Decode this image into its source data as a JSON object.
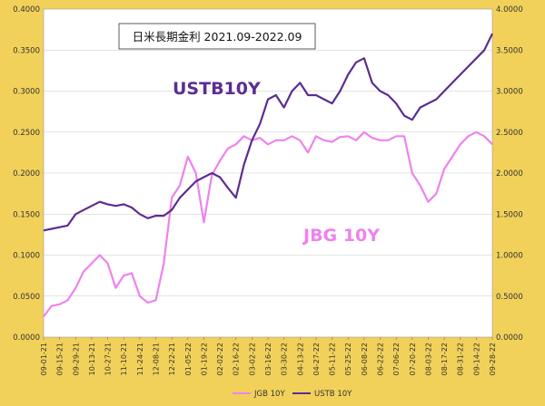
{
  "chart_data": {
    "type": "line",
    "title": "日米長期金利 2021.09-2022.09",
    "annotations": {
      "ustb": "USTB10Y",
      "jgb": "JBG 10Y"
    },
    "colors": {
      "frame": "#f2d15a",
      "plot_bg": "#ffffff",
      "grid": "#c7c7c7",
      "jgb": "#ee82ee",
      "ustb": "#5c2d91"
    },
    "grid": true,
    "legend_position": "bottom",
    "y_left": {
      "range": [
        0,
        0.4
      ],
      "ticks": [
        "0.4000",
        "0.3500",
        "0.3000",
        "0.2500",
        "0.2000",
        "0.1500",
        "0.1000",
        "0.0500",
        "0.0000"
      ]
    },
    "y_right": {
      "range": [
        0,
        4.0
      ],
      "ticks": [
        "4.0000",
        "3.5000",
        "3.0000",
        "2.5000",
        "2.0000",
        "1.5000",
        "1.0000",
        "0.5000",
        "0.0000"
      ]
    },
    "x_ticks": [
      "09-01-21",
      "09-15-21",
      "09-29-21",
      "10-13-21",
      "10-27-21",
      "11-10-21",
      "11-24-21",
      "12-08-21",
      "12-22-21",
      "01-05-22",
      "01-19-22",
      "02-02-22",
      "02-16-22",
      "03-02-22",
      "03-16-22",
      "03-30-22",
      "04-13-22",
      "04-27-22",
      "05-11-22",
      "05-25-22",
      "06-08-22",
      "06-22-22",
      "07-06-22",
      "07-20-22",
      "08-03-22",
      "08-17-22",
      "08-31-22",
      "09-14-22",
      "09-28-22"
    ],
    "series": [
      {
        "name": "JGB 10Y",
        "axis": "left",
        "x": [
          0,
          0.5,
          1,
          1.5,
          2,
          2.5,
          3,
          3.5,
          4,
          4.5,
          5,
          5.5,
          6,
          6.5,
          7,
          7.5,
          8,
          8.5,
          9,
          9.5,
          10,
          10.5,
          11,
          11.5,
          12,
          12.5,
          13,
          13.5,
          14,
          14.5,
          15,
          15.5,
          16,
          16.5,
          17,
          17.5,
          18,
          18.5,
          19,
          19.5,
          20,
          20.5,
          21,
          21.5,
          22,
          22.5,
          23,
          23.5,
          24,
          24.5,
          25,
          25.5,
          26,
          26.5,
          27,
          27.5,
          28
        ],
        "values": [
          0.025,
          0.038,
          0.04,
          0.045,
          0.06,
          0.08,
          0.09,
          0.1,
          0.09,
          0.06,
          0.075,
          0.078,
          0.05,
          0.042,
          0.045,
          0.09,
          0.17,
          0.185,
          0.22,
          0.2,
          0.14,
          0.198,
          0.215,
          0.23,
          0.235,
          0.245,
          0.24,
          0.243,
          0.235,
          0.24,
          0.24,
          0.245,
          0.24,
          0.225,
          0.245,
          0.24,
          0.238,
          0.244,
          0.245,
          0.24,
          0.25,
          0.243,
          0.24,
          0.24,
          0.245,
          0.245,
          0.2,
          0.185,
          0.165,
          0.175,
          0.205,
          0.22,
          0.235,
          0.245,
          0.25,
          0.245,
          0.235
        ]
      },
      {
        "name": "USTB 10Y",
        "axis": "right",
        "x": [
          0,
          0.5,
          1,
          1.5,
          2,
          2.5,
          3,
          3.5,
          4,
          4.5,
          5,
          5.5,
          6,
          6.5,
          7,
          7.5,
          8,
          8.5,
          9,
          9.5,
          10,
          10.5,
          11,
          11.5,
          12,
          12.5,
          13,
          13.5,
          14,
          14.5,
          15,
          15.5,
          16,
          16.5,
          17,
          17.5,
          18,
          18.5,
          19,
          19.5,
          20,
          20.5,
          21,
          21.5,
          22,
          22.5,
          23,
          23.5,
          24,
          24.5,
          25,
          25.5,
          26,
          26.5,
          27,
          27.5,
          28
        ],
        "values": [
          1.3,
          1.32,
          1.34,
          1.36,
          1.5,
          1.55,
          1.6,
          1.65,
          1.62,
          1.6,
          1.62,
          1.58,
          1.5,
          1.45,
          1.48,
          1.48,
          1.55,
          1.7,
          1.8,
          1.9,
          1.95,
          2.0,
          1.95,
          1.82,
          1.7,
          2.1,
          2.4,
          2.6,
          2.9,
          2.95,
          2.8,
          3.0,
          3.1,
          2.95,
          2.95,
          2.9,
          2.85,
          3.0,
          3.2,
          3.35,
          3.4,
          3.1,
          3.0,
          2.95,
          2.85,
          2.7,
          2.65,
          2.8,
          2.85,
          2.9,
          3.0,
          3.1,
          3.2,
          3.3,
          3.4,
          3.5,
          3.7
        ]
      }
    ]
  }
}
